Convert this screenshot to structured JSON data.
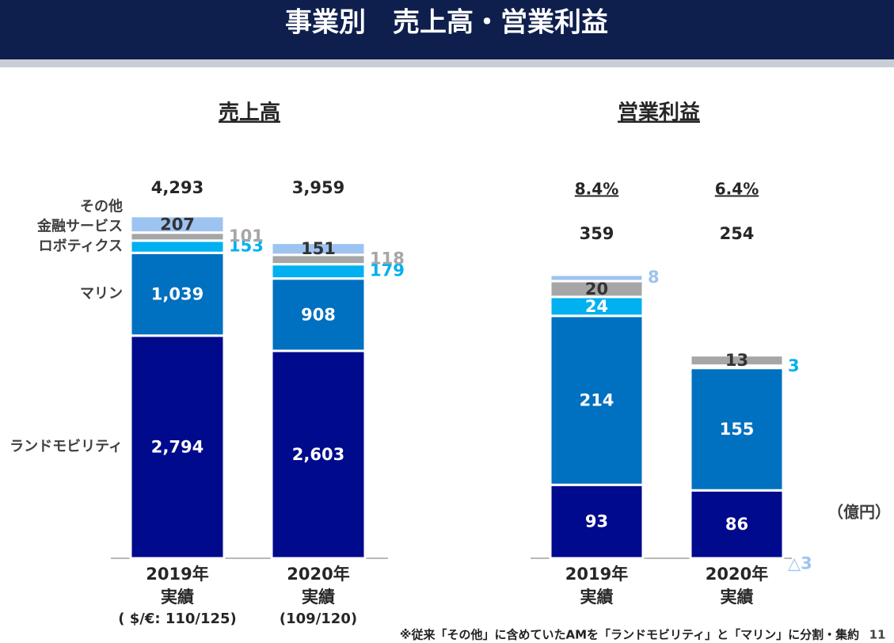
{
  "header": {
    "title": "事業別　売上高・営業利益"
  },
  "chart_data": [
    {
      "type": "bar",
      "stacked": true,
      "title": "売上高",
      "legend": true,
      "categories": [
        "2019年",
        "2020年"
      ],
      "category_notes": [
        "実績",
        "実績"
      ],
      "exchange_rates": [
        "( $/€: 110/125)",
        "(109/120)"
      ],
      "totals": [
        4293,
        3959
      ],
      "total_labels": [
        "4,293",
        "3,959"
      ],
      "series": [
        {
          "name": "ランドモビリティ",
          "color": "#000a8c",
          "label_color": "#ffffff",
          "values": [
            2794,
            2603
          ],
          "value_labels": [
            "2,794",
            "2,603"
          ],
          "label_position": [
            "inside",
            "inside"
          ]
        },
        {
          "name": "マリン",
          "color": "#0070c0",
          "label_color": "#ffffff",
          "values": [
            1039,
            908
          ],
          "value_labels": [
            "1,039",
            "908"
          ],
          "label_position": [
            "inside",
            "inside"
          ]
        },
        {
          "name": "ロボティクス",
          "color": "#00b0f0",
          "label_color": "#ffffff",
          "values": [
            153,
            179
          ],
          "label_position": [
            "outside",
            "outside"
          ]
        },
        {
          "name": "金融サービス",
          "color": "#a6a6a6",
          "label_color": "#333333",
          "values": [
            101,
            118
          ],
          "label_position": [
            "outside",
            "outside"
          ]
        },
        {
          "name": "その他",
          "color": "#9dc3f0",
          "label_color": "#333333",
          "values": [
            207,
            151
          ],
          "label_position": [
            "inside",
            "inside"
          ]
        }
      ]
    },
    {
      "type": "bar",
      "stacked": true,
      "title": "営業利益",
      "legend": false,
      "categories": [
        "2019年",
        "2020年"
      ],
      "category_notes": [
        "実績",
        "実績"
      ],
      "totals": [
        359,
        254
      ],
      "margins": [
        8.4,
        6.4
      ],
      "margin_labels": [
        "8.4%",
        "6.4%"
      ],
      "series": [
        {
          "name": "ランドモビリティ",
          "color": "#000a8c",
          "label_color": "#ffffff",
          "values": [
            93,
            86
          ],
          "label_position": [
            "inside",
            "inside"
          ]
        },
        {
          "name": "マリン",
          "color": "#0070c0",
          "label_color": "#ffffff",
          "values": [
            214,
            155
          ],
          "label_position": [
            "inside",
            "inside"
          ]
        },
        {
          "name": "ロボティクス",
          "color": "#00b0f0",
          "label_color": "#ffffff",
          "values": [
            24,
            3
          ],
          "label_position": [
            "inside",
            "outside"
          ]
        },
        {
          "name": "金融サービス",
          "color": "#a6a6a6",
          "label_color": "#333333",
          "values": [
            20,
            13
          ],
          "label_position": [
            "inside",
            "inside"
          ]
        },
        {
          "name": "その他",
          "color": "#9dc3f0",
          "label_color": "#333333",
          "values": [
            8,
            -3
          ],
          "value_labels": [
            "8",
            "△3"
          ],
          "label_position": [
            "outside",
            "outside"
          ]
        }
      ]
    }
  ],
  "unit": "（億円）",
  "footnote": "※従来「その他」に含めていたAMを「ランドモビリティ」と「マリン」に分割・集約",
  "page_number": "11"
}
